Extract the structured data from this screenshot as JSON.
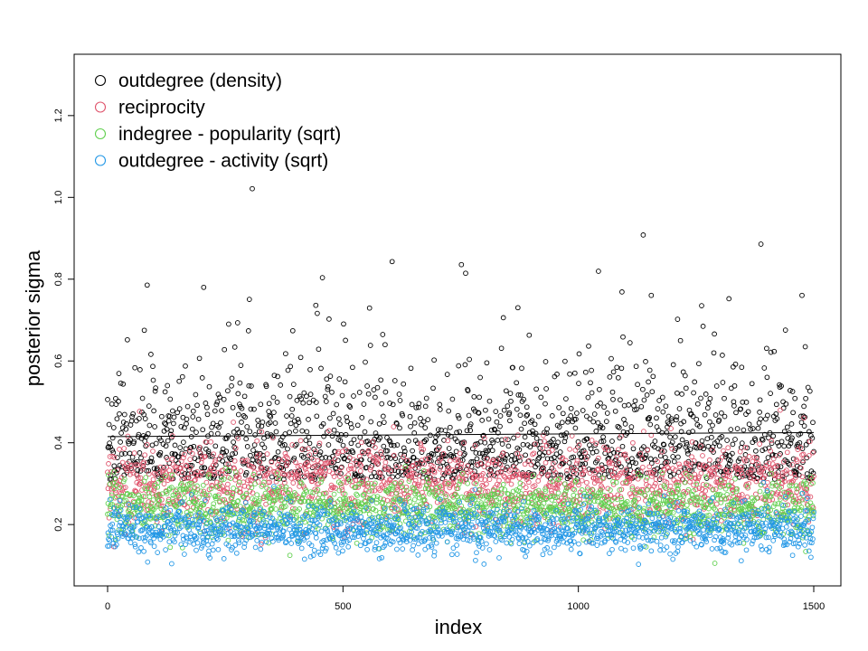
{
  "chart_data": {
    "type": "scatter",
    "title": "",
    "xlabel": "index",
    "ylabel": "posterior sigma",
    "xlim": [
      0,
      1500
    ],
    "ylim": [
      0.05,
      1.35
    ],
    "x_ticks": [
      0,
      500,
      1000,
      1500
    ],
    "y_ticks": [
      0.2,
      0.4,
      0.6,
      0.8,
      1.0,
      1.2
    ],
    "x_tick_labels": [
      "0",
      "500",
      "1000",
      "1500"
    ],
    "y_tick_labels": [
      "0.2",
      "0.4",
      "0.6",
      "0.8",
      "1.0",
      "1.2"
    ],
    "grid": false,
    "legend_position": "top-left",
    "series": [
      {
        "name": "outdegree (density)",
        "color": "#000000",
        "marker": "open-circle",
        "center": 0.43,
        "spread": 0.1,
        "n": 1500
      },
      {
        "name": "reciprocity",
        "color": "#DF536B",
        "marker": "open-circle",
        "center": 0.3,
        "spread": 0.05,
        "n": 1500
      },
      {
        "name": "indegree - popularity (sqrt)",
        "color": "#61D04F",
        "marker": "open-circle",
        "center": 0.24,
        "spread": 0.035,
        "n": 1500
      },
      {
        "name": "outdegree - activity (sqrt)",
        "color": "#2297E6",
        "marker": "open-circle",
        "center": 0.19,
        "spread": 0.03,
        "n": 1500
      }
    ],
    "trend_line": {
      "x": [
        0,
        750,
        1500
      ],
      "y": [
        0.415,
        0.42,
        0.425
      ],
      "color": "#000000"
    }
  }
}
